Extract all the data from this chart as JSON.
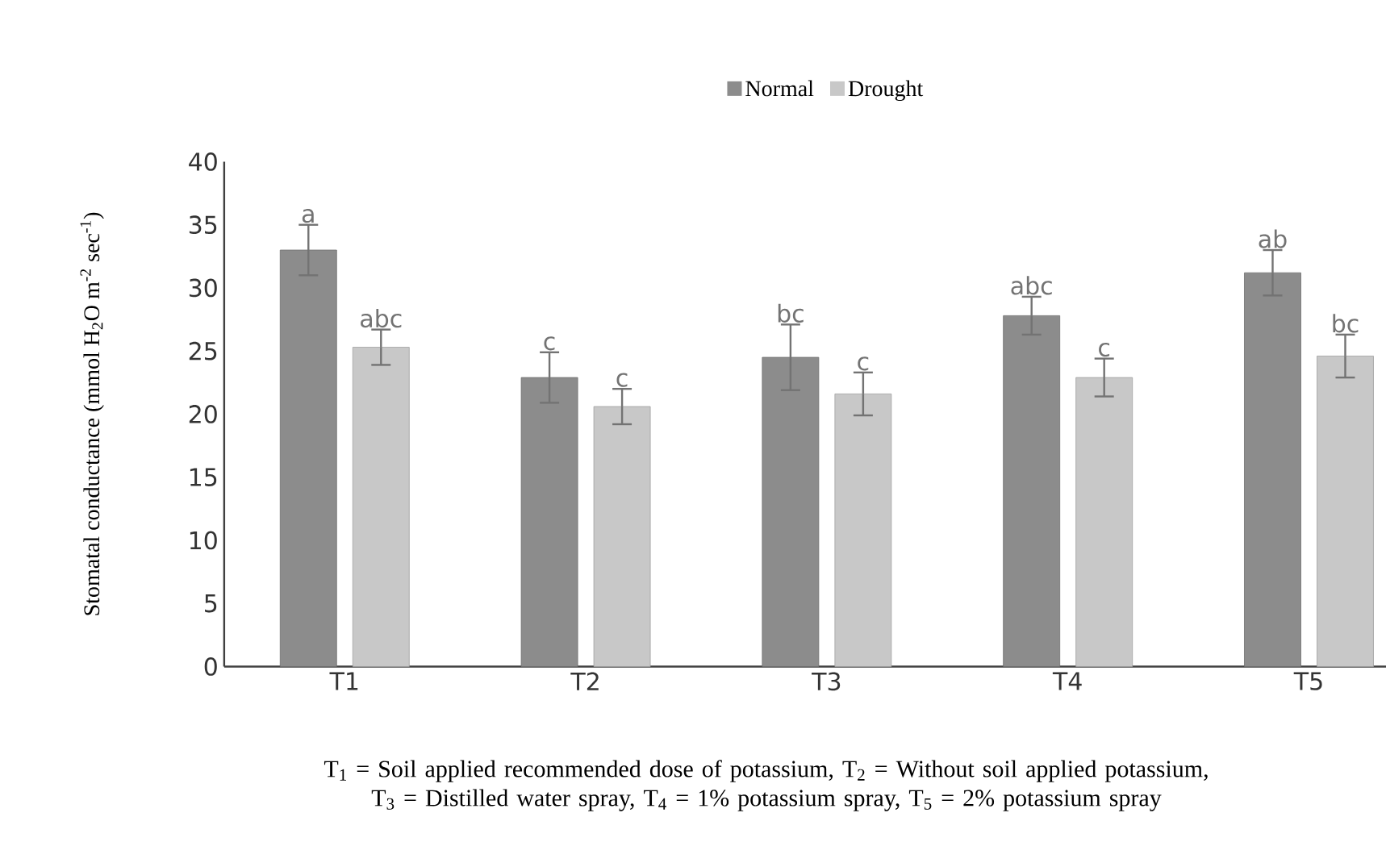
{
  "chart_data": {
    "type": "bar",
    "categories": [
      "T1",
      "T2",
      "T3",
      "T4",
      "T5"
    ],
    "series": [
      {
        "name": "Normal",
        "color": "#8c8c8c",
        "values": [
          33.0,
          22.9,
          24.5,
          27.8,
          31.2
        ],
        "errors": [
          2.0,
          2.0,
          2.6,
          1.5,
          1.8
        ],
        "value_labels": [
          "a",
          "c",
          "bc",
          "abc",
          "ab"
        ]
      },
      {
        "name": "Drought",
        "color": "#c8c8c8",
        "values": [
          25.3,
          20.6,
          21.6,
          22.9,
          24.6
        ],
        "errors": [
          1.4,
          1.4,
          1.7,
          1.5,
          1.7
        ],
        "value_labels": [
          "abc",
          "c",
          "c",
          "c",
          "bc"
        ]
      }
    ],
    "ylabel": "Stomatal conductance (mmol H$_{2}$O m$^{-2}$ sec$^{-1}$)",
    "ylim": [
      0,
      40
    ],
    "yticks": [
      0,
      5,
      10,
      15,
      20,
      25,
      30,
      35,
      40
    ],
    "legend": "top",
    "annotations": [
      "T$_{1}$ = Soil applied recommended dose of potassium, T$_{2}$ = Without soil applied potassium, T$_{3}$ = Distilled water spray, T$_{4}$ = 1% potassium spray, T$_{5}$ =  2% potassium spray"
    ]
  }
}
